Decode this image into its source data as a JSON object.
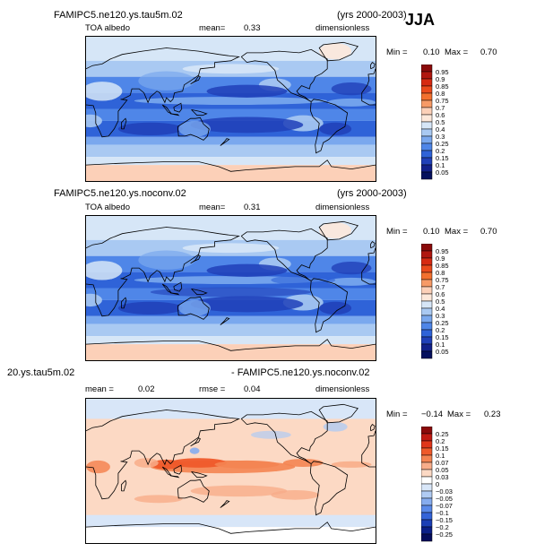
{
  "season": "JJA",
  "panels": [
    {
      "title": "FAMIPC5.ne120.ys.tau5m.02",
      "years": "(yrs 2000-2003)",
      "variable": "TOA albedo",
      "stat1_label": "mean=",
      "stat1_value": "0.33",
      "units": "dimensionless",
      "min_label": "Min =",
      "min_value": "0.10",
      "max_label": "Max =",
      "max_value": "0.70",
      "colorbar_levels": [
        "0.95",
        "0.9",
        "0.85",
        "0.8",
        "0.75",
        "0.7",
        "0.6",
        "0.5",
        "0.4",
        "0.3",
        "0.25",
        "0.2",
        "0.15",
        "0.1",
        "0.05"
      ]
    },
    {
      "title": "FAMIPC5.ne120.ys.noconv.02",
      "years": "(yrs 2000-2003)",
      "variable": "TOA albedo",
      "stat1_label": "mean=",
      "stat1_value": "0.31",
      "units": "dimensionless",
      "min_label": "Min =",
      "min_value": "0.10",
      "max_label": "Max =",
      "max_value": "0.70",
      "colorbar_levels": [
        "0.95",
        "0.9",
        "0.85",
        "0.8",
        "0.75",
        "0.7",
        "0.6",
        "0.5",
        "0.4",
        "0.3",
        "0.25",
        "0.2",
        "0.15",
        "0.1",
        "0.05"
      ]
    },
    {
      "title_left": "20.ys.tau5m.02",
      "title_right": "- FAMIPC5.ne120.ys.noconv.02",
      "stat1_label": "mean =",
      "stat1_value": "0.02",
      "stat2_label": "rmse =",
      "stat2_value": "0.04",
      "units": "dimensionless",
      "min_label": "Min =",
      "min_value": "−0.14",
      "max_label": "Max =",
      "max_value": "0.23",
      "colorbar_levels": [
        "0.25",
        "0.2",
        "0.15",
        "0.1",
        "0.07",
        "0.05",
        "0.03",
        "0",
        "−0.03",
        "−0.05",
        "−0.07",
        "−0.1",
        "−0.15",
        "−0.2",
        "−0.25"
      ]
    }
  ],
  "colors": {
    "seq_palette": [
      "#8b0a0a",
      "#b0170f",
      "#d62a12",
      "#ea4a1c",
      "#f3702f",
      "#f79a66",
      "#fcd0b8",
      "#fde8da",
      "#d6e6f7",
      "#a9c9f2",
      "#7aa8ee",
      "#4f86e8",
      "#2f63d8",
      "#2040b8",
      "#12208a",
      "#05105e"
    ],
    "diff_palette": [
      "#8b0a0a",
      "#c01a12",
      "#e0361a",
      "#ef5a2a",
      "#f48452",
      "#f8ad8a",
      "#fcd9c4",
      "#ffffff",
      "#d8e6f8",
      "#b0cbf3",
      "#86acef",
      "#5a8aea",
      "#3464d9",
      "#1b3fb6",
      "#0a1f88",
      "#040c5c"
    ]
  },
  "chart_data": [
    {
      "type": "heatmap",
      "title": "FAMIPC5.ne120.ys.tau5m.02",
      "subtitle": "TOA albedo",
      "units": "dimensionless",
      "mean": 0.33,
      "min": 0.1,
      "max": 0.7,
      "levels": [
        0.05,
        0.1,
        0.15,
        0.2,
        0.25,
        0.3,
        0.4,
        0.5,
        0.6,
        0.7,
        0.75,
        0.8,
        0.85,
        0.9,
        0.95
      ]
    },
    {
      "type": "heatmap",
      "title": "FAMIPC5.ne120.ys.noconv.02",
      "subtitle": "TOA albedo",
      "units": "dimensionless",
      "mean": 0.31,
      "min": 0.1,
      "max": 0.7,
      "levels": [
        0.05,
        0.1,
        0.15,
        0.2,
        0.25,
        0.3,
        0.4,
        0.5,
        0.6,
        0.7,
        0.75,
        0.8,
        0.85,
        0.9,
        0.95
      ]
    },
    {
      "type": "heatmap",
      "title": "20.ys.tau5m.02 - FAMIPC5.ne120.ys.noconv.02",
      "units": "dimensionless",
      "mean": 0.02,
      "rmse": 0.04,
      "min": -0.14,
      "max": 0.23,
      "levels": [
        -0.25,
        -0.2,
        -0.15,
        -0.1,
        -0.07,
        -0.05,
        -0.03,
        0,
        0.03,
        0.05,
        0.07,
        0.1,
        0.15,
        0.2,
        0.25
      ]
    }
  ]
}
